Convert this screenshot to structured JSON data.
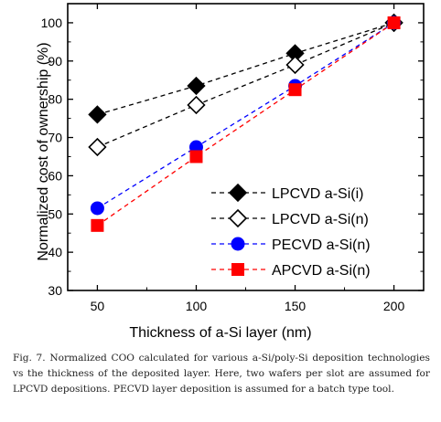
{
  "chart_data": {
    "type": "line",
    "xlabel": "Thickness of a-Si layer (nm)",
    "ylabel": "Normalized cost of ownership (%)",
    "x": [
      50,
      100,
      150,
      200
    ],
    "xlim": [
      35,
      215
    ],
    "ylim": [
      30,
      105
    ],
    "xticks": [
      "50",
      "100",
      "150",
      "200"
    ],
    "yticks": [
      "30",
      "40",
      "50",
      "60",
      "70",
      "80",
      "90",
      "100"
    ],
    "grid": false,
    "legend_position": "lower-right",
    "series": [
      {
        "name": "LPCVD a-Si(i)",
        "values": [
          76,
          83.5,
          92,
          100
        ],
        "color": "#000000",
        "marker": "filled-diamond"
      },
      {
        "name": "LPCVD a-Si(n)",
        "values": [
          67.5,
          78.5,
          89,
          100
        ],
        "color": "#000000",
        "marker": "open-diamond"
      },
      {
        "name": "PECVD a-Si(n)",
        "values": [
          51.5,
          67.5,
          83.5,
          100
        ],
        "color": "#0000ff",
        "marker": "circle"
      },
      {
        "name": "APCVD a-Si(n)",
        "values": [
          47,
          65,
          82.5,
          100
        ],
        "color": "#ff0000",
        "marker": "square"
      }
    ]
  },
  "caption": "Fig. 7. Normalized COO calculated for various a-Si/poly-Si deposition technologies vs the thickness of the deposited layer. Here, two wafers per slot are assumed for LPCVD depositions. PECVD layer deposition is assumed for a batch type tool."
}
